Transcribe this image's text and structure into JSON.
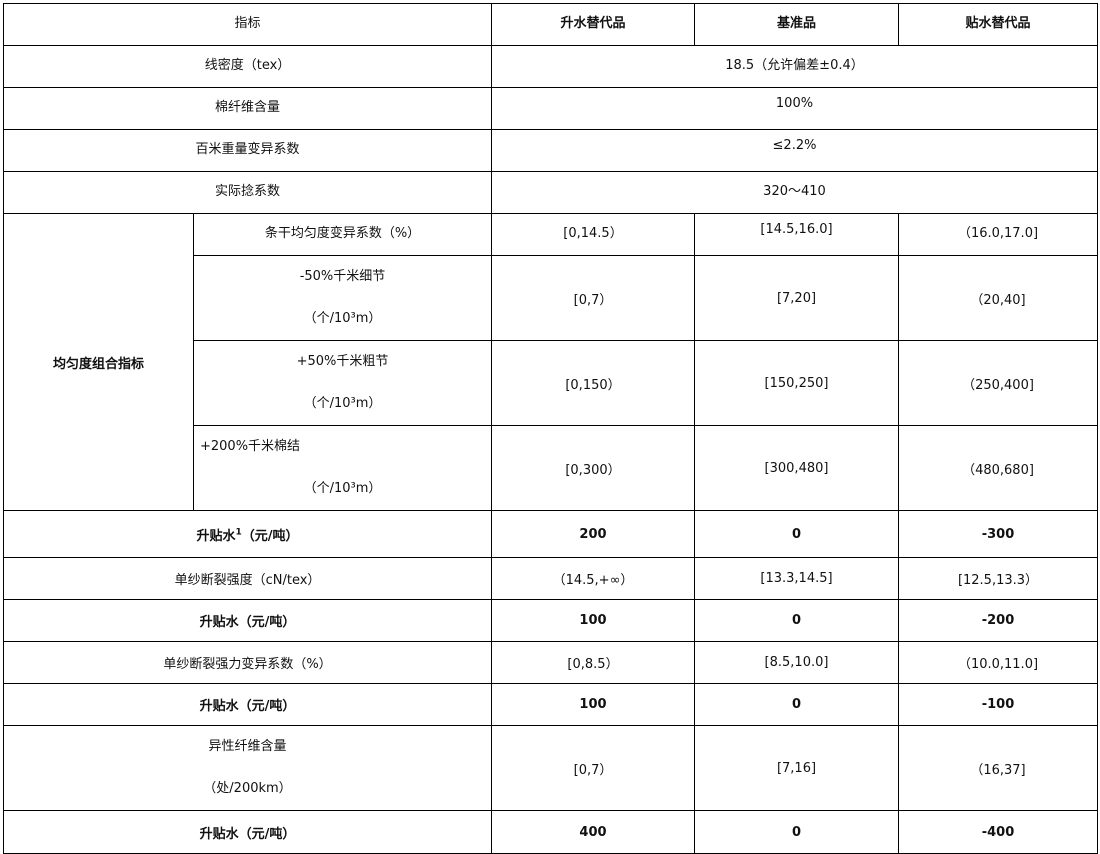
{
  "header": {
    "indicator": "指标",
    "premium": "升水替代品",
    "base": "基准品",
    "discount": "贴水替代品"
  },
  "common_rows": [
    {
      "label": "线密度（tex）",
      "value": "18.5（允许偏差±0.4）"
    },
    {
      "label": "棉纤维含量",
      "value": "100%"
    },
    {
      "label": "百米重量变异系数",
      "value": "≤2.2%"
    },
    {
      "label": "实际捻系数",
      "value": "320～410"
    }
  ],
  "uniformity": {
    "group_label": "均匀度组合指标",
    "rows": [
      {
        "label": "条干均匀度变异系数（%）",
        "premium": "[0,14.5）",
        "base": "[14.5,16.0]",
        "discount": "（16.0,17.0]"
      },
      {
        "label": "-50%千米细节",
        "unit": "（个/10³m）",
        "premium": "[0,7）",
        "base": "[7,20]",
        "discount": "（20,40]"
      },
      {
        "label": "+50%千米粗节",
        "unit": "（个/10³m）",
        "premium": "[0,150）",
        "base": "[150,250]",
        "discount": "（250,400]"
      },
      {
        "label": "+200%千米棉结",
        "unit": "（个/10³m）",
        "premium": "[0,300）",
        "base": "[300,480]",
        "discount": "（480,680]"
      }
    ],
    "adj": {
      "label": "升贴水",
      "sup": "1",
      "unit": "（元/吨）",
      "premium": "200",
      "base": "0",
      "discount": "-300"
    }
  },
  "rows": [
    {
      "label": "单纱断裂强度（cN/tex）",
      "premium": "（14.5,+∞）",
      "base": "[13.3,14.5]",
      "discount": "[12.5,13.3）",
      "bold": false
    },
    {
      "label": "升贴水（元/吨）",
      "premium": "100",
      "base": "0",
      "discount": "-200",
      "bold": true
    },
    {
      "label": "单纱断裂强力变异系数（%）",
      "premium": "[0,8.5）",
      "base": "[8.5,10.0]",
      "discount": "（10.0,11.0]",
      "bold": false
    },
    {
      "label": "升贴水（元/吨）",
      "premium": "100",
      "base": "0",
      "discount": "-100",
      "bold": true
    }
  ],
  "foreign_fiber": {
    "label": "异性纤维含量",
    "unit": "（处/200km）",
    "premium": "[0,7）",
    "base": "[7,16]",
    "discount": "（16,37]"
  },
  "final_adj": {
    "label": "升贴水（元/吨）",
    "premium": "400",
    "base": "0",
    "discount": "-400"
  }
}
